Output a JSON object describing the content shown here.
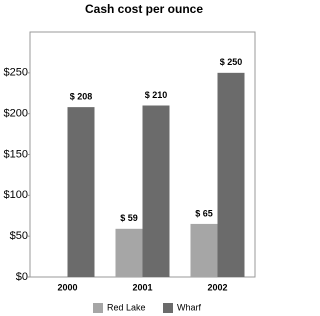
{
  "chart_data": {
    "type": "bar",
    "title": "Cash cost per ounce",
    "categories": [
      "2000",
      "2001",
      "2002"
    ],
    "series": [
      {
        "name": "Red Lake",
        "color": "#a6a6a6",
        "values": [
          null,
          59,
          65
        ],
        "value_labels": [
          null,
          "$  59",
          "$  65"
        ]
      },
      {
        "name": "Wharf",
        "color": "#6b6b6b",
        "values": [
          208,
          210,
          250
        ],
        "value_labels": [
          "$ 208",
          "$ 210",
          "$ 250"
        ]
      }
    ],
    "ylim": [
      0,
      300
    ],
    "yticks": [
      {
        "value": 0,
        "label": "$0"
      },
      {
        "value": 50,
        "label": "$50"
      },
      {
        "value": 100,
        "label": "$100"
      },
      {
        "value": 150,
        "label": "$150"
      },
      {
        "value": 200,
        "label": "$200"
      },
      {
        "value": 250,
        "label": "$250"
      }
    ],
    "legend": "bottom"
  }
}
